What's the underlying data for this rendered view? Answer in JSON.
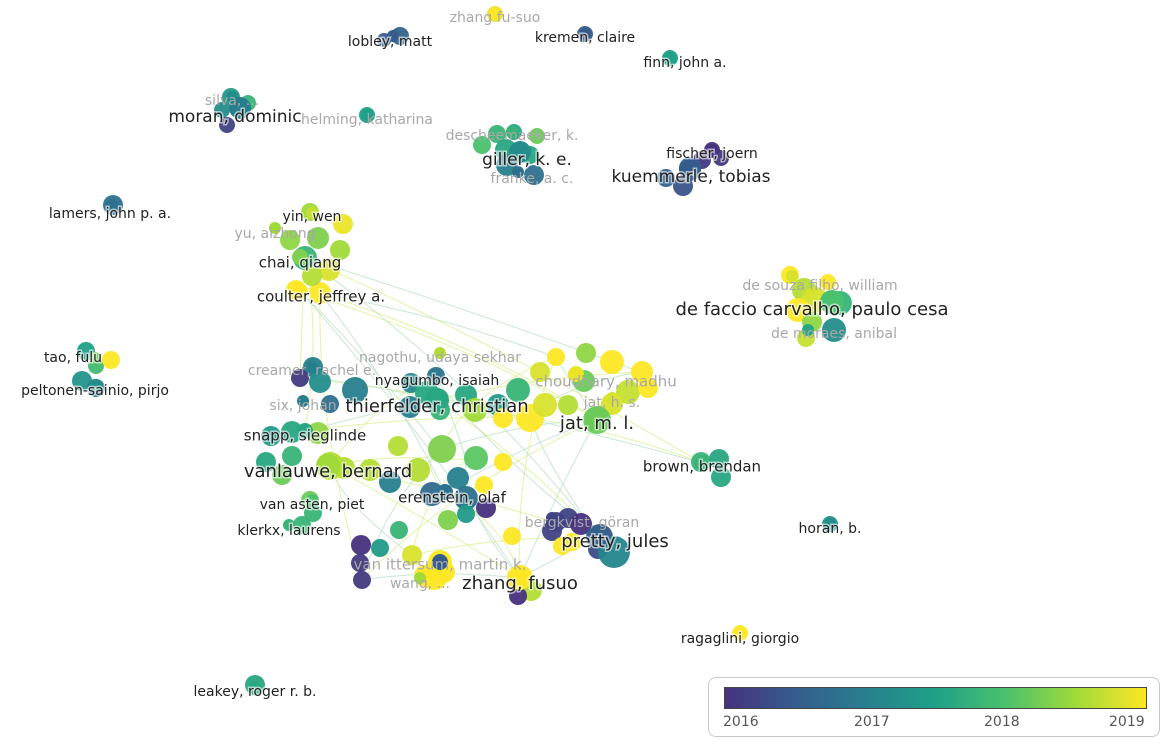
{
  "chart_data": {
    "type": "network",
    "overlay_year_range": [
      2016.0,
      2019.2
    ],
    "colors": {
      "2016": "#46327e",
      "2016.5": "#365c8d",
      "2017": "#277f8e",
      "2017.5": "#1fa187",
      "2018": "#4ac16d",
      "2018.5": "#a0da39",
      "2019": "#fde725",
      "edge": "#a8d8a8",
      "label": "#222222",
      "faded_label": "#a8a8a8"
    },
    "nodes": [
      {
        "id": "zhang-fu-suo",
        "label": "zhang fu-suo",
        "year": 2019.0,
        "weight": 1,
        "faded": true
      },
      {
        "id": "lobley-matt",
        "label": "lobley, matt",
        "year": 2016.5,
        "weight": 1
      },
      {
        "id": "kremen-claire",
        "label": "kremen, claire",
        "year": 2016.5,
        "weight": 1
      },
      {
        "id": "finn-john-a",
        "label": "finn, john a.",
        "year": 2017.5,
        "weight": 1
      },
      {
        "id": "silva-unlabeled",
        "label": "silva, ...",
        "year": 2017.2,
        "weight": 1,
        "faded": true
      },
      {
        "id": "moran-dominic",
        "label": "moran, dominic",
        "year": 2017.0,
        "weight": 3
      },
      {
        "id": "helming-katharina",
        "label": "helming, katharina",
        "year": 2017.5,
        "weight": 1,
        "faded": true
      },
      {
        "id": "descheemaeker-k",
        "label": "descheemaeker, k.",
        "year": 2017.8,
        "weight": 1,
        "faded": true
      },
      {
        "id": "giller-k-e",
        "label": "giller, k. e.",
        "year": 2017.2,
        "weight": 3
      },
      {
        "id": "franke-a-c",
        "label": "franke, a. c.",
        "year": 2016.8,
        "weight": 1,
        "faded": true
      },
      {
        "id": "fischer-joern",
        "label": "fischer, joern",
        "year": 2016.0,
        "weight": 1
      },
      {
        "id": "kuemmerle-tobias",
        "label": "kuemmerle, tobias",
        "year": 2016.5,
        "weight": 3
      },
      {
        "id": "lamers-john-p-a",
        "label": "lamers, john p. a.",
        "year": 2016.8,
        "weight": 1
      },
      {
        "id": "yin-wen",
        "label": "yin, wen",
        "year": 2018.7,
        "weight": 1
      },
      {
        "id": "yu-aizhong",
        "label": "yu, aizhong",
        "year": 2018.5,
        "weight": 1,
        "faded": true
      },
      {
        "id": "chai-qiang",
        "label": "chai, qiang",
        "year": 2018.3,
        "weight": 2
      },
      {
        "id": "coulter-jeffrey-a",
        "label": "coulter, jeffrey a.",
        "year": 2019.0,
        "weight": 2
      },
      {
        "id": "de-souza-filho-william",
        "label": "de souza filho, william",
        "year": 2018.8,
        "weight": 1,
        "faded": true
      },
      {
        "id": "de-faccio-carvalho",
        "label": "de faccio carvalho, paulo cesa",
        "year": 2018.0,
        "weight": 4
      },
      {
        "id": "de-moraes-anibal",
        "label": "de moraes, anibal",
        "year": 2017.6,
        "weight": 1,
        "faded": true
      },
      {
        "id": "tao-fulu",
        "label": "tao, fulu",
        "year": 2018.2,
        "weight": 1
      },
      {
        "id": "peltonen-sainio-pirjo",
        "label": "peltonen-sainio, pirjo",
        "year": 2017.2,
        "weight": 1
      },
      {
        "id": "creamer-rachel-e",
        "label": "creamer, rachel e.",
        "year": 2017.0,
        "weight": 1,
        "faded": true
      },
      {
        "id": "nagothu-udaya-sekhar",
        "label": "nagothu, udaya sekhar",
        "year": 2018.6,
        "weight": 1,
        "faded": true
      },
      {
        "id": "nyagumbo-isaiah",
        "label": "nyagumbo, isaiah",
        "year": 2017.0,
        "weight": 1
      },
      {
        "id": "choudhary-madhu",
        "label": "choudhary, madhu",
        "year": 2018.9,
        "weight": 2,
        "faded": true
      },
      {
        "id": "thierfelder-christian",
        "label": "thierfelder, christian",
        "year": 2017.6,
        "weight": 4
      },
      {
        "id": "six-johan",
        "label": "six, johan",
        "year": 2017.0,
        "weight": 1,
        "faded": true
      },
      {
        "id": "jat-m-l",
        "label": "jat, m. l.",
        "year": 2018.2,
        "weight": 4
      },
      {
        "id": "jat-h-s",
        "label": "jat, h. s.",
        "year": 2018.8,
        "weight": 1,
        "faded": true
      },
      {
        "id": "snapp-sieglinde",
        "label": "snapp, sieglinde",
        "year": 2017.6,
        "weight": 2
      },
      {
        "id": "vanlauwe-bernard",
        "label": "vanlauwe, bernard",
        "year": 2018.5,
        "weight": 4
      },
      {
        "id": "brown-brendan",
        "label": "brown, brendan",
        "year": 2017.8,
        "weight": 2
      },
      {
        "id": "erenstein-olaf",
        "label": "erenstein, olaf",
        "year": 2016.8,
        "weight": 2
      },
      {
        "id": "van-asten-piet",
        "label": "van asten, piet",
        "year": 2018.0,
        "weight": 1
      },
      {
        "id": "bergkvist-goran",
        "label": "bergkvist, göran",
        "year": 2016.2,
        "weight": 1,
        "faded": true
      },
      {
        "id": "horan-b",
        "label": "horan, b.",
        "year": 2017.2,
        "weight": 1
      },
      {
        "id": "klerkx-laurens",
        "label": "klerkx, laurens",
        "year": 2017.8,
        "weight": 1
      },
      {
        "id": "pretty-jules",
        "label": "pretty, jules",
        "year": 2016.6,
        "weight": 4
      },
      {
        "id": "van-ittersum-martin-k",
        "label": "van ittersum, martin k.",
        "year": 2016.5,
        "weight": 2,
        "faded": true
      },
      {
        "id": "zhang-fusuo",
        "label": "zhang, fusuo",
        "year": 2019.0,
        "weight": 4
      },
      {
        "id": "wang-unlabeled",
        "label": "wang, ...",
        "year": 2018.5,
        "weight": 1,
        "faded": true
      },
      {
        "id": "ragaglini-giorgio",
        "label": "ragaglini, giorgio",
        "year": 2019.0,
        "weight": 1
      },
      {
        "id": "leakey-roger-r-b",
        "label": "leakey, roger r. b.",
        "year": 2017.6,
        "weight": 1
      }
    ],
    "legend": {
      "ticks": [
        "2016",
        "2017",
        "2018",
        "2019"
      ]
    }
  }
}
